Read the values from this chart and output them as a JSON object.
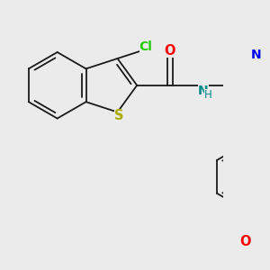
{
  "bg_color": "#ebebeb",
  "bond_color": "#1a1a1a",
  "atom_colors": {
    "Cl": "#22cc00",
    "S": "#aaaa00",
    "O": "#ff0000",
    "N": "#0000ee",
    "NH_N": "#008888",
    "NH_H": "#008888",
    "C": "#1a1a1a"
  },
  "lw": 1.3,
  "fs": 9.5,
  "fig_w": 3.0,
  "fig_h": 3.0,
  "dpi": 100
}
